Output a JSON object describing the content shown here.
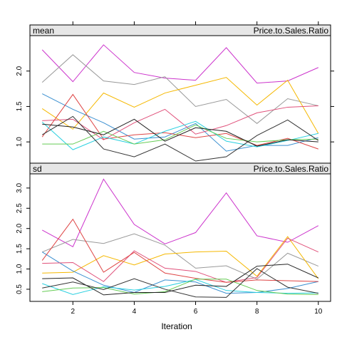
{
  "chart_data": {
    "type": "line",
    "xlabel": "Iteration",
    "x": [
      1,
      2,
      3,
      4,
      5,
      6,
      7,
      8,
      9,
      10
    ],
    "x_ticks": [
      2,
      4,
      6,
      8,
      10
    ],
    "xlim": [
      0.6,
      10.4
    ],
    "panels": [
      {
        "name": "mean",
        "strip_left": "mean",
        "strip_right": "Price.to.Sales.Ratio",
        "ylim": [
          0.7,
          2.5
        ],
        "y_ticks": [
          1.0,
          1.5,
          2.0
        ],
        "y_tick_labels": [
          "1.0",
          "1.5",
          "2.0"
        ],
        "series": [
          {
            "color": "#cc33cc",
            "values": [
              2.3,
              1.85,
              2.37,
              1.98,
              1.9,
              1.87,
              2.33,
              1.83,
              1.86,
              2.05
            ]
          },
          {
            "color": "#999999",
            "values": [
              1.84,
              2.23,
              1.86,
              1.81,
              1.92,
              1.5,
              1.6,
              1.26,
              1.61,
              1.51
            ]
          },
          {
            "color": "#f5b800",
            "values": [
              1.47,
              1.18,
              1.69,
              1.49,
              1.69,
              1.8,
              1.91,
              1.52,
              1.87,
              1.12
            ]
          },
          {
            "color": "#3a8fd0",
            "values": [
              1.68,
              1.46,
              1.27,
              1.04,
              1.07,
              1.26,
              0.87,
              0.95,
              0.95,
              1.06
            ]
          },
          {
            "color": "#e0507a",
            "values": [
              1.3,
              1.32,
              1.03,
              1.27,
              1.46,
              1.11,
              1.23,
              1.41,
              1.49,
              1.51
            ]
          },
          {
            "color": "#de4545",
            "values": [
              1.07,
              1.67,
              1.04,
              1.1,
              1.13,
              1.06,
              1.12,
              0.95,
              1.05,
              0.9
            ]
          },
          {
            "color": "#2ad0e0",
            "values": [
              1.28,
              0.89,
              1.07,
              0.97,
              1.15,
              1.29,
              1.01,
              0.93,
              1.02,
              1.12
            ]
          },
          {
            "color": "#66cc55",
            "values": [
              0.97,
              0.97,
              1.15,
              0.97,
              1.03,
              1.24,
              1.05,
              1.0,
              1.03,
              1.04
            ]
          },
          {
            "color": "#222222",
            "values": [
              1.25,
              1.21,
              1.1,
              1.32,
              1.01,
              1.2,
              1.15,
              0.94,
              1.03,
              1.0
            ]
          },
          {
            "color": "#333333",
            "values": [
              1.1,
              1.36,
              0.9,
              0.79,
              0.97,
              0.73,
              0.79,
              1.09,
              1.31,
              1.02
            ]
          }
        ]
      },
      {
        "name": "sd",
        "strip_left": "sd",
        "strip_right": "Price.to.Sales.Ratio",
        "ylim": [
          0.2,
          3.35
        ],
        "y_ticks": [
          0.5,
          1.0,
          1.5,
          2.0,
          2.5,
          3.0
        ],
        "y_tick_labels": [
          "0.5",
          "1.0",
          "1.5",
          "2.0",
          "2.5",
          "3.0"
        ],
        "series": [
          {
            "color": "#cc33cc",
            "values": [
              1.96,
              1.55,
              3.22,
              2.1,
              1.62,
              1.9,
              2.88,
              1.82,
              1.66,
              2.07
            ]
          },
          {
            "color": "#999999",
            "values": [
              1.42,
              1.73,
              1.63,
              1.87,
              1.59,
              1.02,
              1.08,
              0.75,
              1.39,
              1.07
            ]
          },
          {
            "color": "#f5b800",
            "values": [
              0.9,
              0.92,
              1.33,
              1.1,
              1.37,
              1.42,
              1.44,
              0.82,
              1.8,
              0.76
            ]
          },
          {
            "color": "#3a8fd0",
            "values": [
              1.42,
              0.95,
              0.6,
              0.42,
              0.73,
              0.68,
              0.4,
              0.42,
              0.52,
              0.69
            ]
          },
          {
            "color": "#e0507a",
            "values": [
              1.14,
              1.16,
              0.69,
              1.45,
              1.02,
              0.94,
              0.67,
              0.79,
              1.76,
              1.42
            ]
          },
          {
            "color": "#de4545",
            "values": [
              1.21,
              2.23,
              0.92,
              1.41,
              0.9,
              0.77,
              0.67,
              0.73,
              0.71,
              0.69
            ]
          },
          {
            "color": "#2ad0e0",
            "values": [
              0.64,
              0.37,
              0.56,
              0.48,
              0.57,
              0.74,
              0.47,
              0.42,
              0.4,
              0.41
            ]
          },
          {
            "color": "#66cc55",
            "values": [
              0.44,
              0.53,
              0.54,
              0.38,
              0.44,
              0.75,
              0.75,
              0.47,
              0.38,
              0.37
            ]
          },
          {
            "color": "#222222",
            "values": [
              0.76,
              0.78,
              0.36,
              0.42,
              0.42,
              0.6,
              0.57,
              1.07,
              1.12,
              0.78
            ]
          },
          {
            "color": "#333333",
            "values": [
              0.53,
              0.68,
              0.49,
              0.76,
              0.5,
              0.31,
              0.3,
              1.01,
              0.55,
              0.4
            ]
          }
        ]
      }
    ]
  }
}
